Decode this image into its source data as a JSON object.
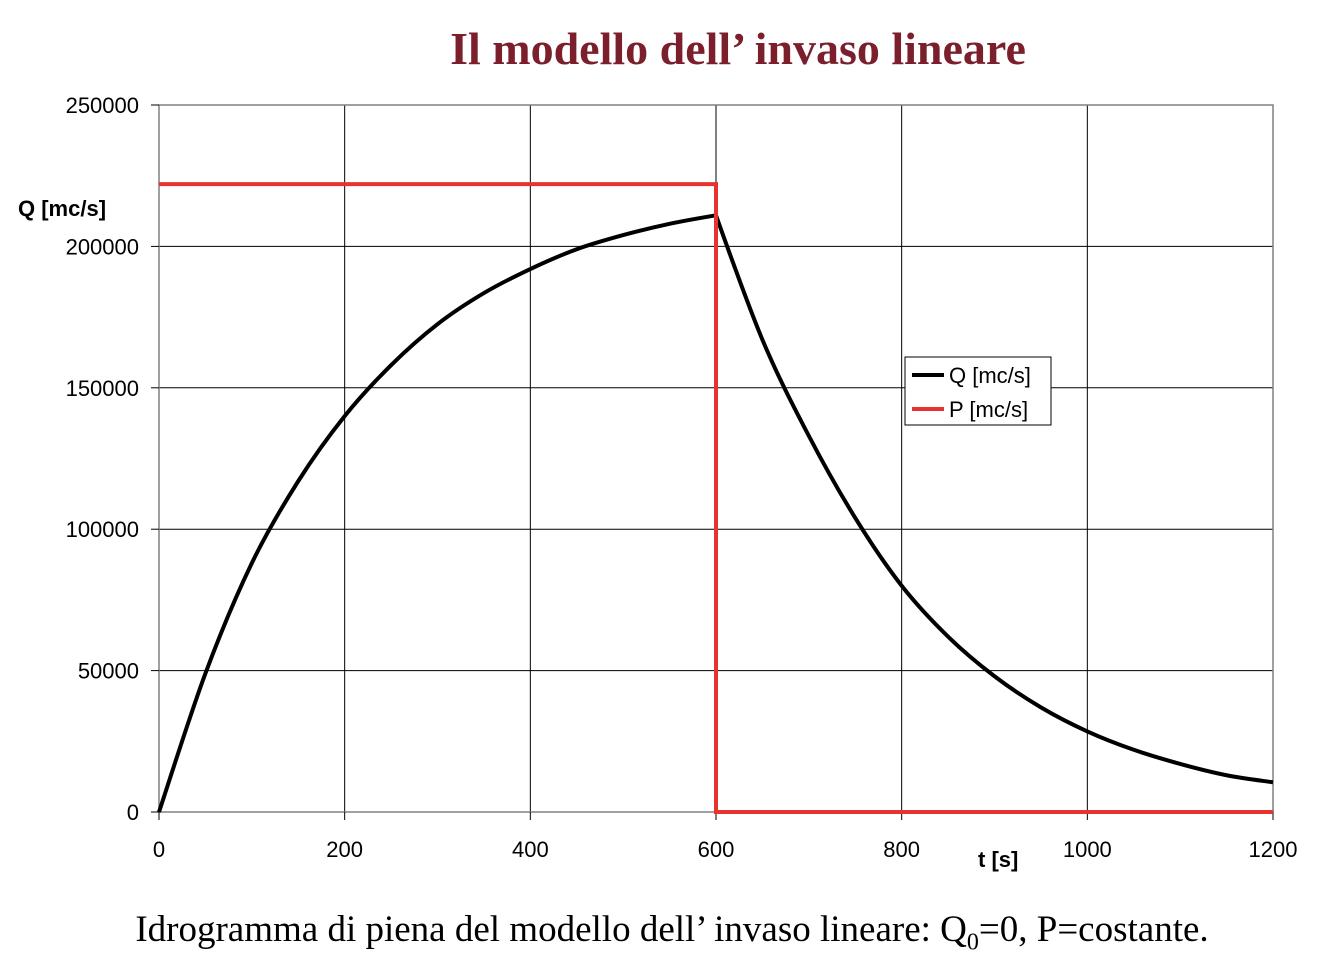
{
  "chart_data": {
    "type": "line",
    "title": "Il modello dell’ invaso lineare",
    "xlabel": "t [s]",
    "ylabel": "Q [mc/s]",
    "xlim": [
      0,
      1200
    ],
    "ylim": [
      0,
      250000
    ],
    "x_ticks": [
      0,
      200,
      400,
      600,
      800,
      1000,
      1200
    ],
    "y_ticks": [
      0,
      50000,
      100000,
      150000,
      200000,
      250000
    ],
    "grid": true,
    "legend_position": "center-right",
    "series": [
      {
        "name": "Q [mc/s]",
        "color": "#000000",
        "x": [
          0,
          50,
          100,
          150,
          200,
          250,
          300,
          350,
          400,
          450,
          500,
          550,
          600,
          650,
          700,
          750,
          800,
          850,
          900,
          950,
          1000,
          1050,
          1100,
          1150,
          1200
        ],
        "y": [
          0,
          49000,
          88000,
          117000,
          140000,
          158000,
          172500,
          183500,
          192000,
          199000,
          204000,
          208000,
          211000,
          167000,
          133000,
          104000,
          80000,
          62000,
          48000,
          37000,
          28500,
          22000,
          17000,
          13000,
          10500
        ]
      },
      {
        "name": "P [mc/s]",
        "color": "#e8322d",
        "x": [
          0,
          600,
          600,
          1200
        ],
        "y": [
          222000,
          222000,
          0,
          0
        ]
      }
    ]
  },
  "caption": {
    "text_before": "Idrogramma di piena del modello dell’ invaso lineare: Q",
    "subscript": "0",
    "text_after": "=0, P=costante."
  }
}
